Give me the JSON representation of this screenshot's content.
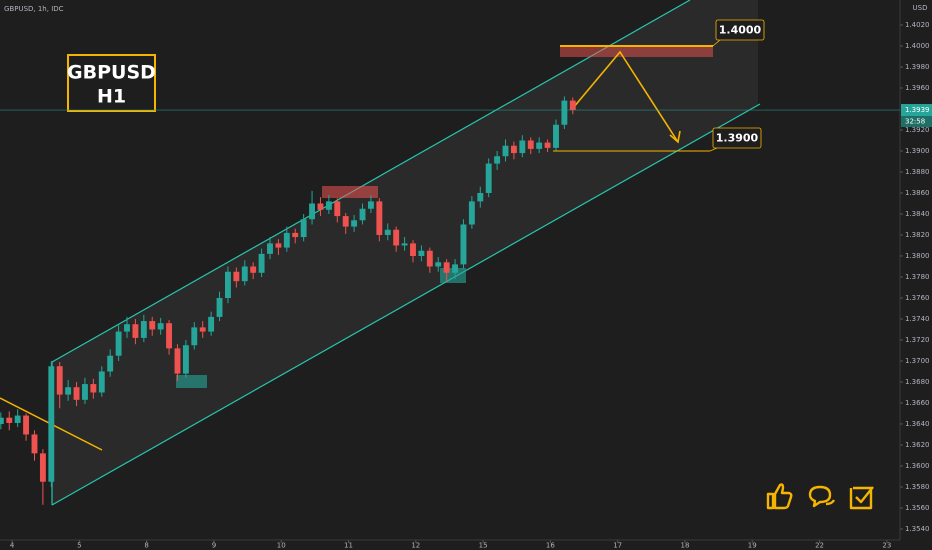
{
  "header": "GBPUSD, 1h, IDC",
  "chart_data": {
    "type": "candlestick",
    "title": "GBPUSD",
    "subtitle": "H1",
    "x": [
      -4,
      -1,
      2,
      5,
      8,
      11,
      14,
      17,
      20,
      23,
      26,
      29,
      32,
      35,
      38,
      41,
      44,
      47,
      50,
      53,
      56,
      59,
      62,
      65,
      68,
      71,
      74,
      77,
      80,
      83,
      86,
      89,
      92,
      95,
      98,
      101,
      104,
      107,
      110,
      113,
      116,
      119,
      122,
      125,
      128,
      131,
      134,
      137,
      140,
      143,
      146,
      149,
      152,
      155,
      158,
      161,
      164,
      167,
      170,
      173,
      176,
      179,
      182,
      185,
      188,
      191,
      194,
      197,
      200
    ],
    "open": [
      1.364,
      1.3646,
      1.3641,
      1.3648,
      1.363,
      1.3612,
      1.3585,
      1.3695,
      1.3668,
      1.3675,
      1.3663,
      1.3678,
      1.367,
      1.369,
      1.3705,
      1.3728,
      1.3735,
      1.3722,
      1.3738,
      1.373,
      1.3736,
      1.3712,
      1.3688,
      1.3715,
      1.3732,
      1.3728,
      1.3742,
      1.376,
      1.3785,
      1.3776,
      1.379,
      1.3784,
      1.3802,
      1.3812,
      1.3808,
      1.3822,
      1.3818,
      1.3835,
      1.385,
      1.3844,
      1.3852,
      1.3838,
      1.3828,
      1.3834,
      1.3845,
      1.3852,
      1.382,
      1.3825,
      1.381,
      1.3812,
      1.38,
      1.3805,
      1.379,
      1.3794,
      1.3784,
      1.3792,
      1.383,
      1.3852,
      1.386,
      1.3888,
      1.3895,
      1.3905,
      1.3898,
      1.391,
      1.3902,
      1.3908,
      1.3903,
      1.3925,
      1.3948
    ],
    "high": [
      1.3651,
      1.3652,
      1.3654,
      1.365,
      1.3634,
      1.3616,
      1.37,
      1.3699,
      1.3682,
      1.368,
      1.3684,
      1.3683,
      1.3695,
      1.3711,
      1.3734,
      1.3742,
      1.374,
      1.3744,
      1.3742,
      1.3741,
      1.3739,
      1.3716,
      1.372,
      1.3737,
      1.3738,
      1.3747,
      1.3766,
      1.379,
      1.3789,
      1.3796,
      1.3794,
      1.3807,
      1.3818,
      1.3816,
      1.3828,
      1.3826,
      1.384,
      1.3862,
      1.3856,
      1.3858,
      1.3855,
      1.3841,
      1.3839,
      1.385,
      1.3858,
      1.3855,
      1.3831,
      1.3828,
      1.3818,
      1.3815,
      1.381,
      1.3808,
      1.3799,
      1.3797,
      1.3797,
      1.3835,
      1.3857,
      1.3866,
      1.3893,
      1.39,
      1.3911,
      1.3909,
      1.3915,
      1.3913,
      1.3913,
      1.3911,
      1.393,
      1.3952,
      1.3951
    ],
    "low": [
      1.3635,
      1.3634,
      1.3637,
      1.3624,
      1.3605,
      1.3563,
      1.358,
      1.3655,
      1.3662,
      1.3657,
      1.3659,
      1.3664,
      1.3666,
      1.3685,
      1.37,
      1.3722,
      1.3716,
      1.3718,
      1.3724,
      1.3725,
      1.3706,
      1.3681,
      1.3684,
      1.3711,
      1.3722,
      1.3724,
      1.3738,
      1.3755,
      1.377,
      1.3772,
      1.3778,
      1.378,
      1.3797,
      1.3801,
      1.3804,
      1.3812,
      1.3814,
      1.383,
      1.3838,
      1.384,
      1.3832,
      1.3821,
      1.3823,
      1.383,
      1.3841,
      1.3814,
      1.3815,
      1.3804,
      1.3805,
      1.3794,
      1.3795,
      1.3784,
      1.3785,
      1.3776,
      1.3778,
      1.3788,
      1.3826,
      1.3846,
      1.3856,
      1.3882,
      1.389,
      1.3892,
      1.3894,
      1.3897,
      1.3898,
      1.3899,
      1.39,
      1.3921,
      1.3935
    ],
    "close": [
      1.3646,
      1.3641,
      1.3648,
      1.363,
      1.3612,
      1.3585,
      1.3695,
      1.3668,
      1.3675,
      1.3663,
      1.3678,
      1.367,
      1.369,
      1.3705,
      1.3728,
      1.3735,
      1.3722,
      1.3738,
      1.373,
      1.3736,
      1.3712,
      1.3688,
      1.3715,
      1.3732,
      1.3728,
      1.3742,
      1.376,
      1.3785,
      1.3776,
      1.379,
      1.3784,
      1.3802,
      1.3812,
      1.3808,
      1.3822,
      1.3818,
      1.3835,
      1.385,
      1.3844,
      1.3852,
      1.3838,
      1.3828,
      1.3834,
      1.3845,
      1.3852,
      1.382,
      1.3825,
      1.381,
      1.3812,
      1.38,
      1.3805,
      1.379,
      1.3794,
      1.3784,
      1.3792,
      1.383,
      1.3852,
      1.386,
      1.3888,
      1.3895,
      1.3905,
      1.3898,
      1.391,
      1.3902,
      1.3908,
      1.3903,
      1.3925,
      1.3948,
      1.3939
    ],
    "up_color": "#26a69a",
    "down_color": "#ef5350",
    "xlim": [
      -4.3,
      316.7
    ],
    "xticks": [
      {
        "value": 0,
        "label": "4"
      },
      {
        "value": 24,
        "label": "5"
      },
      {
        "value": 48,
        "label": "8"
      },
      {
        "value": 72,
        "label": "9"
      },
      {
        "value": 96,
        "label": "10"
      },
      {
        "value": 120,
        "label": "11"
      },
      {
        "value": 144,
        "label": "12"
      },
      {
        "value": 168,
        "label": "15"
      },
      {
        "value": 192,
        "label": "16"
      },
      {
        "value": 216,
        "label": "17"
      },
      {
        "value": 240,
        "label": "18"
      },
      {
        "value": 264,
        "label": "19"
      },
      {
        "value": 288,
        "label": "22"
      },
      {
        "value": 312,
        "label": "23"
      }
    ],
    "ylim": [
      1.35295,
      1.40438
    ],
    "yticks": [
      {
        "value": 1.354,
        "label": "1.3540"
      },
      {
        "value": 1.356,
        "label": "1.3560"
      },
      {
        "value": 1.358,
        "label": "1.3580"
      },
      {
        "value": 1.36,
        "label": "1.3600"
      },
      {
        "value": 1.362,
        "label": "1.3620"
      },
      {
        "value": 1.364,
        "label": "1.3640"
      },
      {
        "value": 1.366,
        "label": "1.3660"
      },
      {
        "value": 1.368,
        "label": "1.3680"
      },
      {
        "value": 1.37,
        "label": "1.3700"
      },
      {
        "value": 1.372,
        "label": "1.3720"
      },
      {
        "value": 1.374,
        "label": "1.3740"
      },
      {
        "value": 1.376,
        "label": "1.3760"
      },
      {
        "value": 1.378,
        "label": "1.3780"
      },
      {
        "value": 1.38,
        "label": "1.3800"
      },
      {
        "value": 1.382,
        "label": "1.3820"
      },
      {
        "value": 1.384,
        "label": "1.3840"
      },
      {
        "value": 1.386,
        "label": "1.3860"
      },
      {
        "value": 1.388,
        "label": "1.3880"
      },
      {
        "value": 1.39,
        "label": "1.3900"
      },
      {
        "value": 1.392,
        "label": "1.3920"
      },
      {
        "value": 1.396,
        "label": "1.3960"
      },
      {
        "value": 1.398,
        "label": "1.3980"
      },
      {
        "value": 1.4,
        "label": "1.4000"
      },
      {
        "value": 1.402,
        "label": "1.4020"
      }
    ],
    "y_unit": "USD",
    "last_price": 1.3939,
    "countdown": "32:58",
    "annotations": [
      {
        "value": 1.4,
        "label": "1.4000"
      },
      {
        "value": 1.39,
        "label": "1.3900"
      }
    ]
  }
}
